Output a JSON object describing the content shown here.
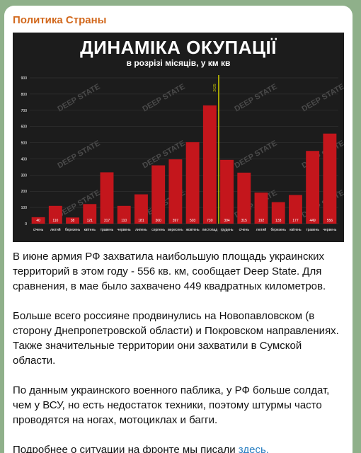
{
  "message": {
    "channel_name": "Политика Страны",
    "paragraphs": [
      "В июне армия РФ захватила наибольшую площадь украинских территорий в этом году - 556 кв. км, сообщает Deep State. Для сравнения, в мае было захвачено 449 квадратных километров.",
      "Больше всего россияне продвинулись на Новопавловском (в сторону Днепропетровской области) и Покровском направлениях. Также значительные территории они захватили в Сумской области.",
      "По данным украинского военного паблика, у РФ больше солдат, чем у ВСУ, но есть недостаток техники, поэтому штурмы часто проводятся на ногах, мотоциклах и багги."
    ],
    "last_paragraph_prefix": "Подробнее о ситуации на фронте мы писали ",
    "link_text": "здесь."
  },
  "chart_data": {
    "type": "bar",
    "title": "ДИНАМІКА ОКУПАЦІЇ",
    "subtitle": "в розрізі місяців, у км кв",
    "categories": [
      "січень",
      "лютий",
      "березень",
      "квітень",
      "травень",
      "червень",
      "липень",
      "серпень",
      "вересень",
      "жовтень",
      "листопад",
      "грудень",
      "січень",
      "лютий",
      "березень",
      "квітень",
      "травень",
      "червень"
    ],
    "values": [
      40,
      110,
      38,
      121,
      317,
      110,
      181,
      360,
      397,
      503,
      730,
      394,
      315,
      192,
      133,
      177,
      449,
      556
    ],
    "ylim": [
      0,
      900
    ],
    "yticks": [
      0,
      100,
      200,
      300,
      400,
      500,
      600,
      700,
      800,
      900
    ],
    "marker_label": "2025",
    "colors": {
      "bar": "#c4161c",
      "background": "#1c1c1c",
      "marker": "#c8c800",
      "text": "#ffffff",
      "grid": "#3a3a3a"
    },
    "watermark": "DEEP STATE"
  }
}
